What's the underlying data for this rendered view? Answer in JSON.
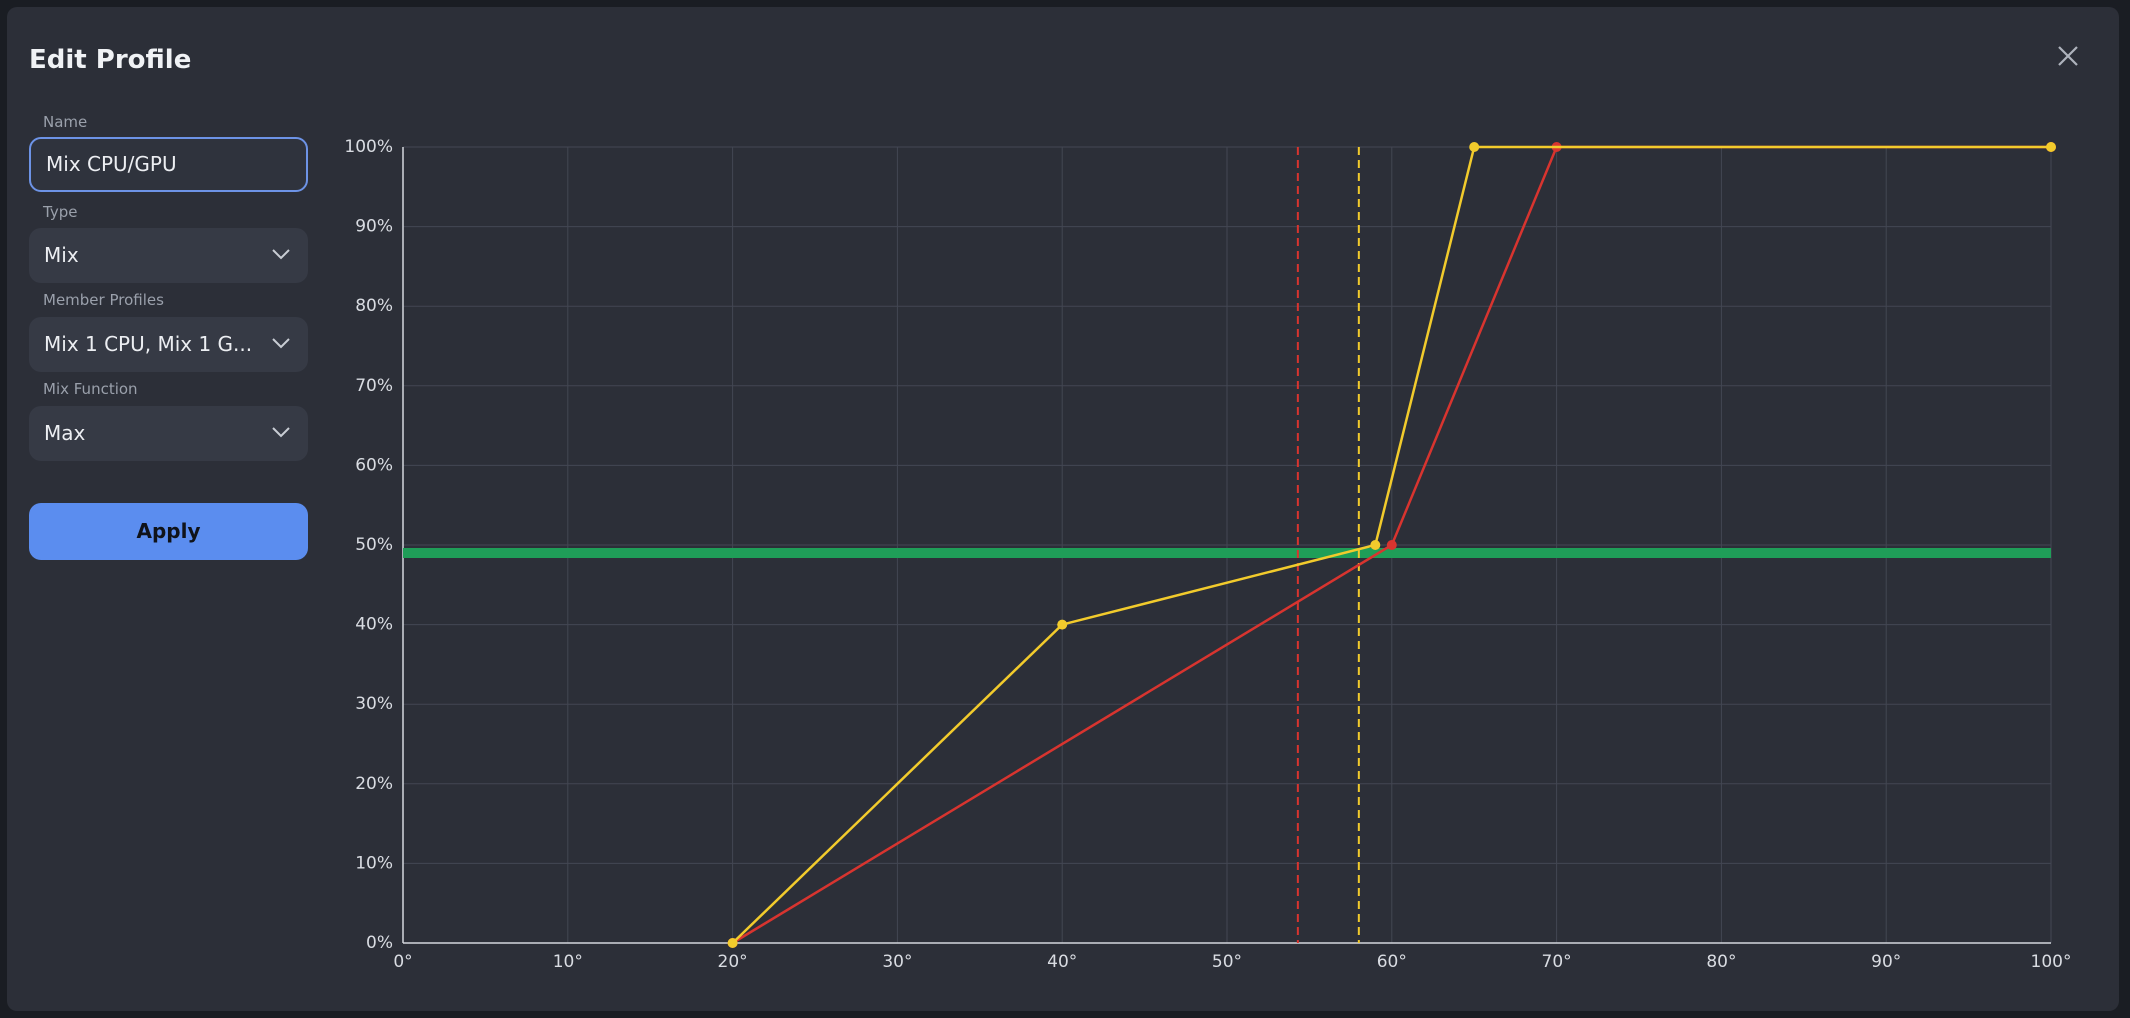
{
  "header": {
    "title": "Edit Profile"
  },
  "form": {
    "fields": [
      {
        "label": "Name",
        "value": "Mix CPU/GPU"
      },
      {
        "label": "Type",
        "value": "Mix"
      },
      {
        "label": "Member Profiles",
        "value": "Mix 1 CPU, Mix 1 G..."
      },
      {
        "label": "Mix Function",
        "value": "Max"
      }
    ],
    "button": "Apply"
  },
  "chart_data": {
    "type": "line",
    "xlim": [
      0,
      100
    ],
    "xticks": [
      {
        "value": 0,
        "label": "0°"
      },
      {
        "value": 10,
        "label": "10°"
      },
      {
        "value": 20,
        "label": "20°"
      },
      {
        "value": 30,
        "label": "30°"
      },
      {
        "value": 40,
        "label": "40°"
      },
      {
        "value": 50,
        "label": "50°"
      },
      {
        "value": 60,
        "label": "60°"
      },
      {
        "value": 70,
        "label": "70°"
      },
      {
        "value": 80,
        "label": "80°"
      },
      {
        "value": 90,
        "label": "90°"
      },
      {
        "value": 100,
        "label": "100°"
      }
    ],
    "ylim": [
      0,
      100
    ],
    "yticks": [
      {
        "value": 0,
        "label": "0%"
      },
      {
        "value": 10,
        "label": "10%"
      },
      {
        "value": 20,
        "label": "20%"
      },
      {
        "value": 30,
        "label": "30%"
      },
      {
        "value": 40,
        "label": "40%"
      },
      {
        "value": 50,
        "label": "50%"
      },
      {
        "value": 60,
        "label": "60%"
      },
      {
        "value": 70,
        "label": "70%"
      },
      {
        "value": 80,
        "label": "80%"
      },
      {
        "value": 90,
        "label": "90%"
      },
      {
        "value": 100,
        "label": "100%"
      }
    ],
    "grid": true,
    "series": [
      {
        "color": "#d8342f",
        "x": [
          20,
          60,
          70,
          100
        ],
        "values": [
          0,
          50,
          100,
          100
        ]
      },
      {
        "color": "#f2cb2c",
        "x": [
          20,
          40,
          59,
          65,
          100
        ],
        "values": [
          0,
          40,
          50,
          100,
          100
        ]
      }
    ],
    "vlines": [
      {
        "value": 54.3,
        "color": "#d8342f"
      },
      {
        "value": 58,
        "color": "#f2cb2c"
      }
    ],
    "hline": {
      "value": 49,
      "color": "#1f9e58"
    }
  }
}
